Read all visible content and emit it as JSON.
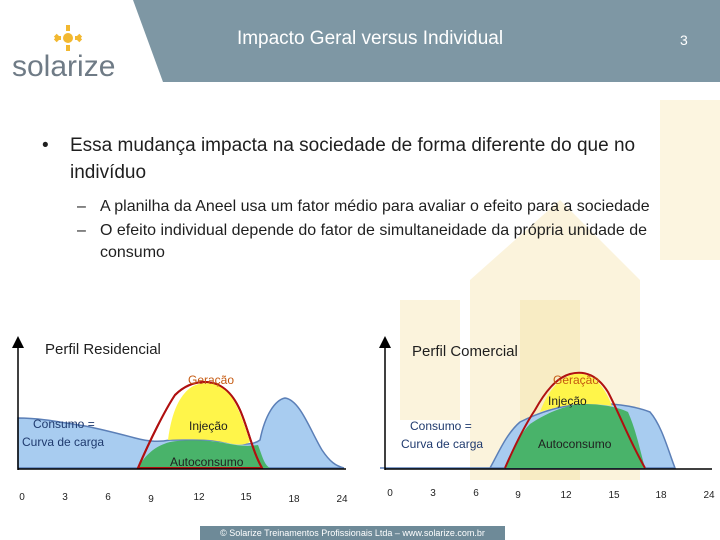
{
  "header": {
    "logo_text": "solarize",
    "title": "Impacto Geral versus Individual",
    "page_number": "3"
  },
  "bullets": [
    {
      "text": "Essa mudança impacta na sociedade de forma diferente do que no indivíduo",
      "sub": [
        "A planilha da Aneel usa um fator médio para avaliar o efeito para a sociedade",
        "O efeito individual depende do fator de simultaneidade da própria unidade de consumo"
      ]
    }
  ],
  "charts": {
    "residencial": {
      "title": "Perfil Residencial",
      "label_geracao": "Geração",
      "label_injecao": "Injeção",
      "label_consumo_line1": "Consumo =",
      "label_consumo_line2": "Curva de carga",
      "label_autoconsumo": "Autoconsumo",
      "ticks": [
        "0",
        "3",
        "6",
        "9",
        "12",
        "15",
        "18",
        "24"
      ]
    },
    "comercial": {
      "title": "Perfil Comercial",
      "label_geracao": "Geração",
      "label_injecao": "Injeção",
      "label_consumo_line1": "Consumo =",
      "label_consumo_line2": "Curva de carga",
      "label_autoconsumo": "Autoconsumo",
      "ticks": [
        "0",
        "3",
        "6",
        "9",
        "12",
        "15",
        "18",
        "24"
      ]
    }
  },
  "colors": {
    "title_bar": "#7e97a4",
    "consumo_fill": "#a8ccf0",
    "consumo_stroke": "#5b7fb7",
    "autoconsumo_fill": "#49b36a",
    "geracao_fill": "#fff54a",
    "geracao_stroke": "#b01010",
    "label_orange": "#c55a11",
    "label_blue": "#1f3a6e"
  },
  "footer": "© Solarize Treinamentos Profissionais Ltda – www.solarize.com.br"
}
